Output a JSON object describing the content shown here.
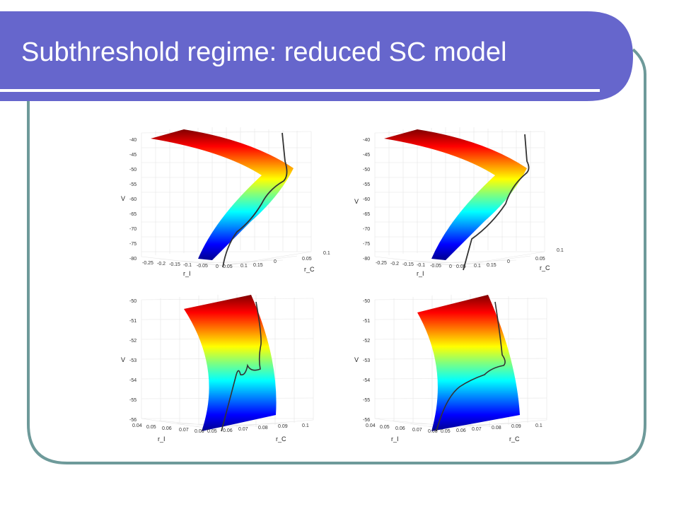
{
  "slide": {
    "title": "Subthreshold regime: reduced SC model",
    "colors": {
      "header": "#6666cc",
      "frame": "#6e9a9a",
      "background": "#ffffff"
    }
  },
  "chart_data": [
    {
      "type": "surface",
      "colormap": "jet",
      "grid": true,
      "zlabel": "V",
      "xlabel": "r_I",
      "ylabel": "r_C",
      "zticks": [
        "-40",
        "-45",
        "-50",
        "-55",
        "-60",
        "-65",
        "-70",
        "-75",
        "-80"
      ],
      "xticks": [
        "-0.25",
        "-0.2",
        "-0.15",
        "-0.1",
        "-0.05",
        "0",
        "0.05",
        "0.1",
        "0.15"
      ],
      "yticks": [
        "0",
        "0.05",
        "0.1"
      ],
      "zlim": [
        -80,
        -40
      ]
    },
    {
      "type": "surface",
      "colormap": "jet",
      "grid": true,
      "zlabel": "V",
      "xlabel": "r_I",
      "ylabel": "r_C",
      "zticks": [
        "-40",
        "-45",
        "-50",
        "-55",
        "-60",
        "-65",
        "-70",
        "-75",
        "-80"
      ],
      "xticks": [
        "-0.25",
        "-0.2",
        "-0.15",
        "-0.1",
        "-0.05",
        "0",
        "0.05",
        "0.1",
        "0.15"
      ],
      "yticks": [
        "0",
        "0.05",
        "0.1"
      ],
      "zlim": [
        -80,
        -40
      ]
    },
    {
      "type": "surface",
      "colormap": "jet",
      "grid": true,
      "zlabel": "V",
      "xlabel": "r_I",
      "ylabel": "r_C",
      "zticks": [
        "-50",
        "-51",
        "-52",
        "-53",
        "-54",
        "-55",
        "-56"
      ],
      "xticks": [
        "0.04",
        "0.05",
        "0.06",
        "0.07",
        "0.08"
      ],
      "yticks": [
        "0.05",
        "0.06",
        "0.07",
        "0.08",
        "0.09",
        "0.1"
      ],
      "zlim": [
        -56,
        -50
      ]
    },
    {
      "type": "surface",
      "colormap": "jet",
      "grid": true,
      "zlabel": "V",
      "xlabel": "r_I",
      "ylabel": "r_C",
      "zticks": [
        "-50",
        "-51",
        "-52",
        "-53",
        "-54",
        "-55",
        "-56"
      ],
      "xticks": [
        "0.04",
        "0.05",
        "0.06",
        "0.07",
        "0.08"
      ],
      "yticks": [
        "0.05",
        "0.06",
        "0.07",
        "0.08",
        "0.09",
        "0.1"
      ],
      "zlim": [
        -56,
        -50
      ]
    }
  ]
}
